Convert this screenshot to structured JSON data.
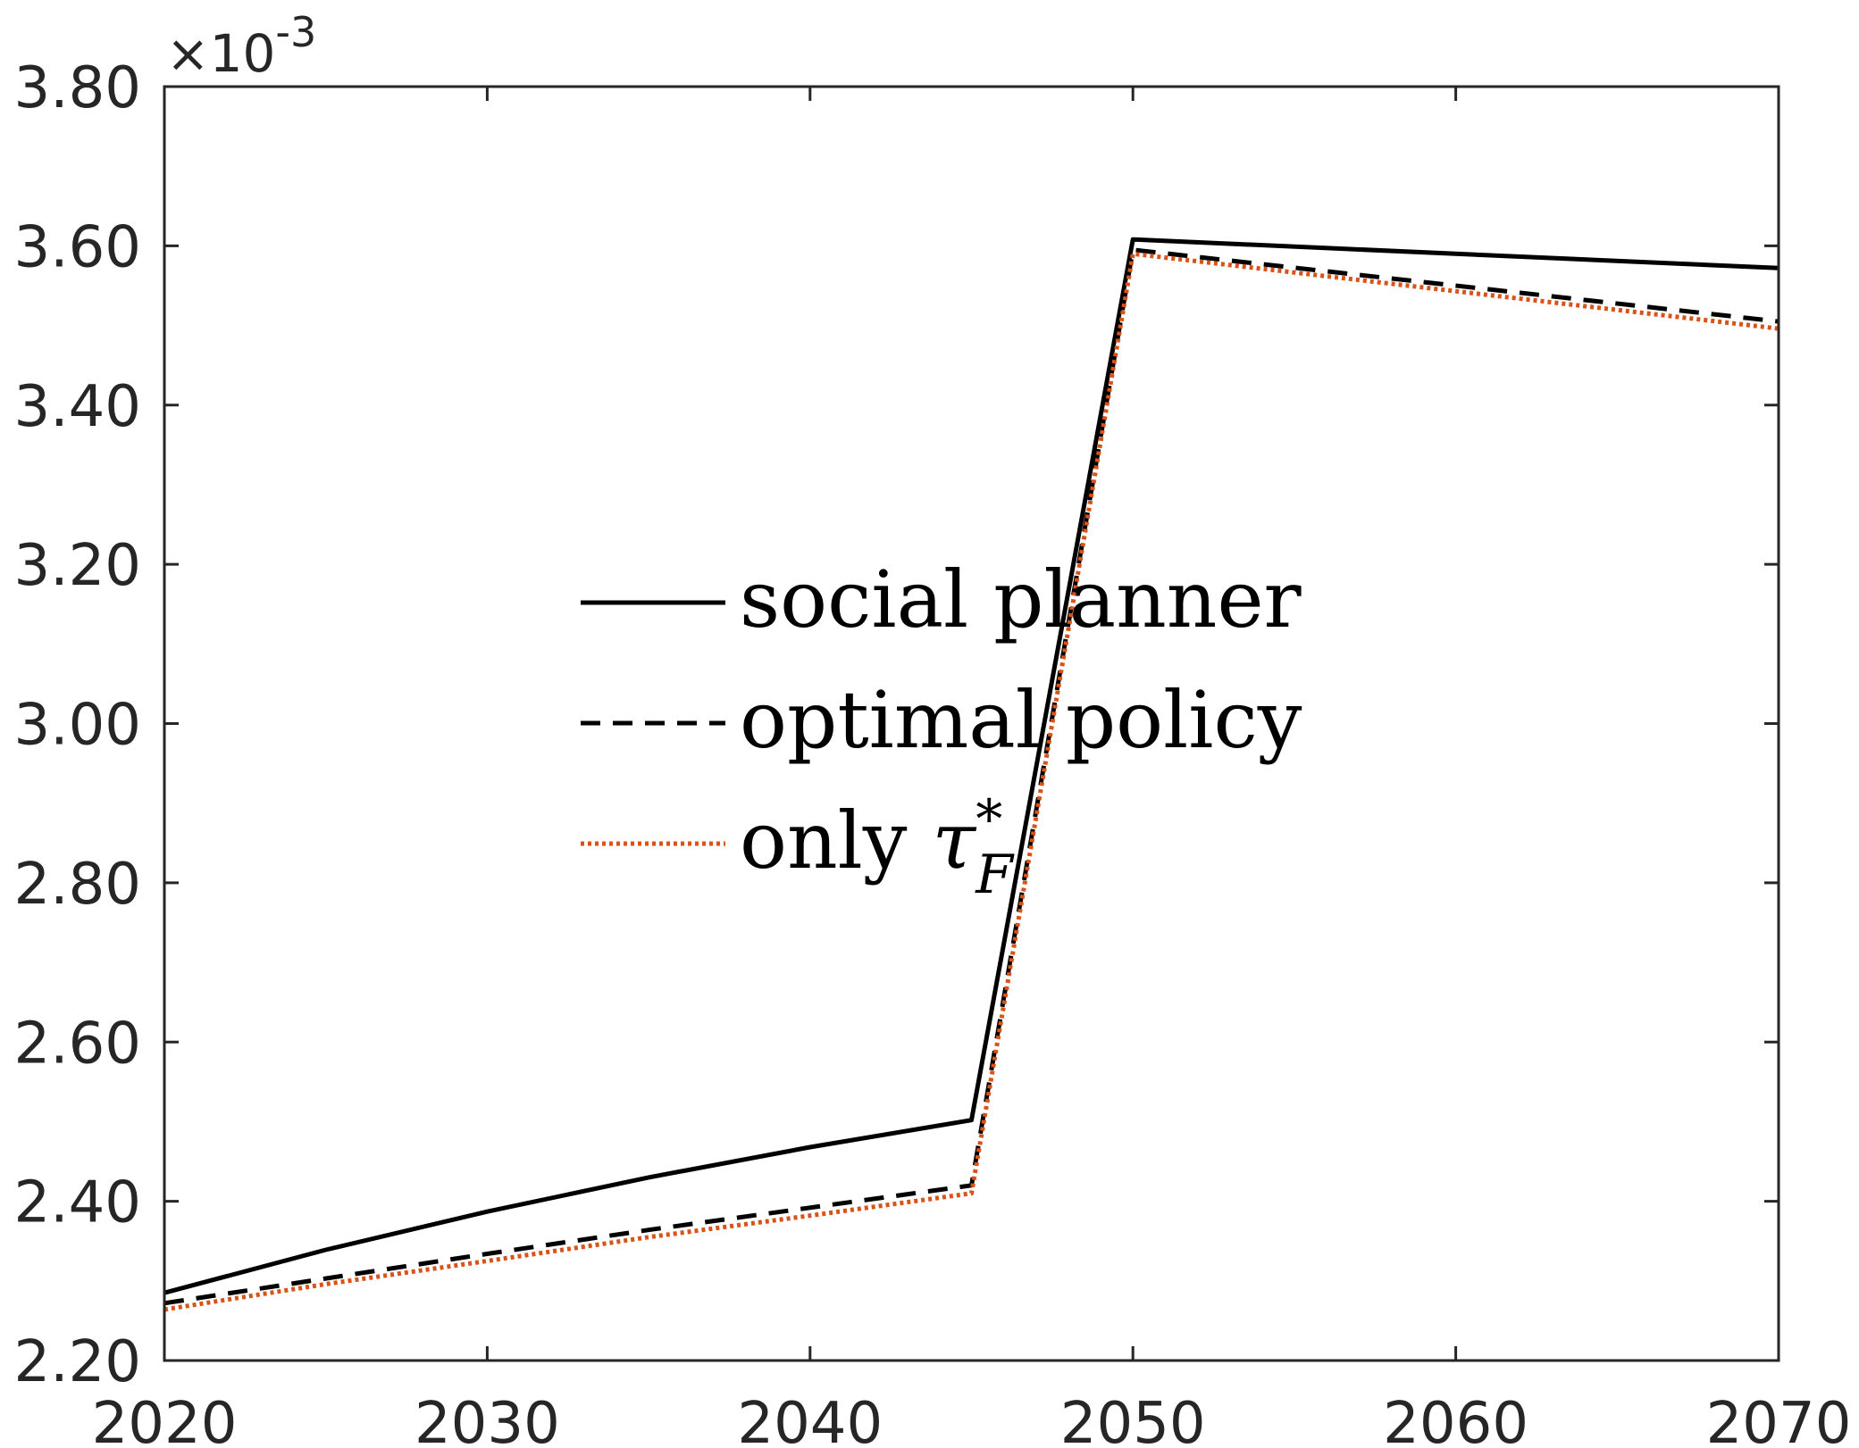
{
  "chart_data": {
    "type": "line",
    "title": "",
    "xlabel": "",
    "ylabel": "",
    "xlim": [
      2020,
      2070
    ],
    "ylim": [
      2.2,
      3.8
    ],
    "y_exponent_label": {
      "times": "×10",
      "power": "-3"
    },
    "x_ticks": [
      2020,
      2030,
      2040,
      2050,
      2060,
      2070
    ],
    "x_tick_labels": [
      "2020",
      "2030",
      "2040",
      "2050",
      "2060",
      "2070"
    ],
    "y_ticks": [
      2.2,
      2.4,
      2.6,
      2.8,
      3.0,
      3.2,
      3.4,
      3.6,
      3.8
    ],
    "y_tick_labels": [
      "2.20",
      "2.40",
      "2.60",
      "2.80",
      "3.00",
      "3.20",
      "3.40",
      "3.60",
      "3.80"
    ],
    "grid": false,
    "legend_position": "center",
    "x": [
      2020,
      2025,
      2030,
      2035,
      2040,
      2045,
      2050,
      2070
    ],
    "series": [
      {
        "name": "social planner",
        "style": "solid",
        "color": "#000000",
        "values": [
          2.285,
          2.339,
          2.387,
          2.43,
          2.468,
          2.502,
          3.608,
          3.572
        ]
      },
      {
        "name": "optimal policy",
        "style": "dashed",
        "color": "#000000",
        "values": [
          2.272,
          2.303,
          2.334,
          2.364,
          2.392,
          2.42,
          3.595,
          3.505
        ]
      },
      {
        "name": "only τ_F*",
        "style": "dotted",
        "color": "#D95319",
        "values": [
          2.264,
          2.296,
          2.325,
          2.355,
          2.382,
          2.41,
          3.59,
          3.496
        ]
      }
    ],
    "legend": {
      "social_planner": "social planner",
      "optimal_policy": "optimal policy",
      "only_prefix": "only ",
      "tau": "τ",
      "tau_sub": "F",
      "tau_sup": "*"
    }
  }
}
